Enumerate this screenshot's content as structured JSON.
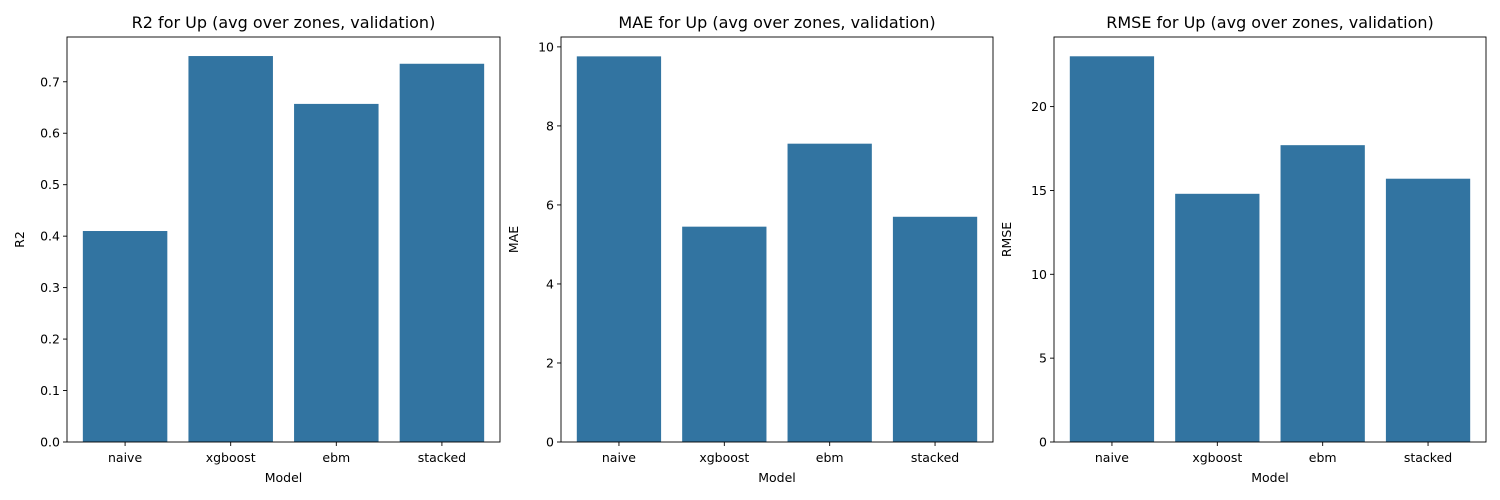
{
  "chart_data": [
    {
      "type": "bar",
      "title": "R2 for Up (avg over zones, validation)",
      "xlabel": "Model",
      "ylabel": "R2",
      "categories": [
        "naive",
        "xgboost",
        "ebm",
        "stacked"
      ],
      "values": [
        0.41,
        0.75,
        0.657,
        0.735
      ],
      "ylim": [
        0,
        0.787
      ],
      "yticks": [
        0.0,
        0.1,
        0.2,
        0.3,
        0.4,
        0.5,
        0.6,
        0.7
      ],
      "ytick_labels": [
        "0.0",
        "0.1",
        "0.2",
        "0.3",
        "0.4",
        "0.5",
        "0.6",
        "0.7"
      ],
      "grid": false,
      "bar_color": "#3274a1"
    },
    {
      "type": "bar",
      "title": "MAE for Up (avg over zones, validation)",
      "xlabel": "Model",
      "ylabel": "MAE",
      "categories": [
        "naive",
        "xgboost",
        "ebm",
        "stacked"
      ],
      "values": [
        9.76,
        5.45,
        7.55,
        5.7
      ],
      "ylim": [
        0,
        10.25
      ],
      "yticks": [
        0,
        2,
        4,
        6,
        8,
        10
      ],
      "ytick_labels": [
        "0",
        "2",
        "4",
        "6",
        "8",
        "10"
      ],
      "grid": false,
      "bar_color": "#3274a1"
    },
    {
      "type": "bar",
      "title": "RMSE for Up (avg over zones, validation)",
      "xlabel": "Model",
      "ylabel": "RMSE",
      "categories": [
        "naive",
        "xgboost",
        "ebm",
        "stacked"
      ],
      "values": [
        23.0,
        14.8,
        17.7,
        15.7
      ],
      "ylim": [
        0,
        24.15
      ],
      "yticks": [
        0,
        5,
        10,
        15,
        20
      ],
      "ytick_labels": [
        "0",
        "5",
        "10",
        "15",
        "20"
      ],
      "grid": false,
      "bar_color": "#3274a1"
    }
  ]
}
